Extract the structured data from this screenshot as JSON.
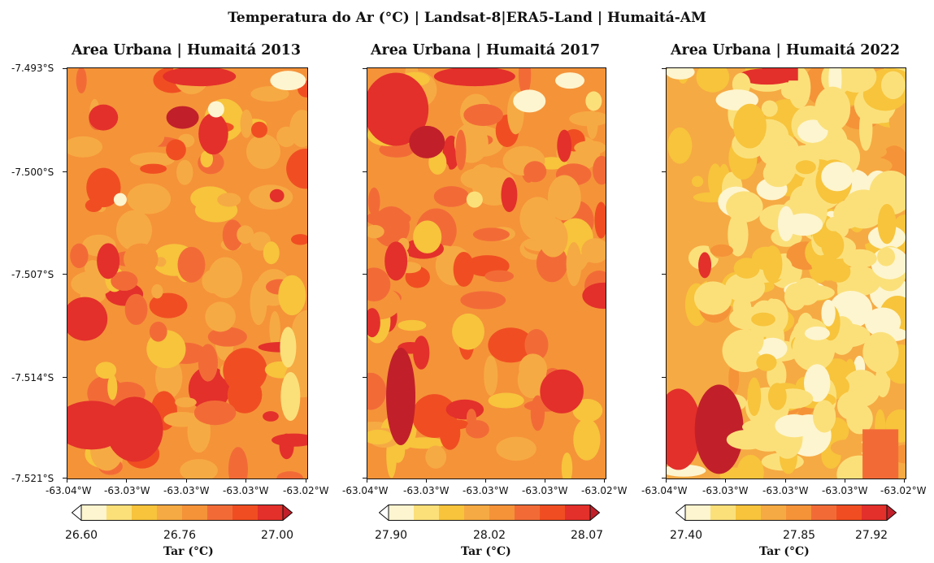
{
  "figure_title": "Temperatura do Ar (°C) | Landsat-8|ERA5-Land | Humaitá-AM",
  "y_tick_labels": [
    "-7.493°S",
    "-7.500°S",
    "-7.507°S",
    "-7.514°S",
    "-7.521°S"
  ],
  "x_tick_labels": [
    "-63.04°W",
    "-63.03°W",
    "-63.03°W",
    "-63.03°W",
    "-63.02°W"
  ],
  "panels": [
    {
      "title": "Area Urbana | Humaitá 2013",
      "colorbar": {
        "ticks": [
          "26.60",
          "26.76",
          "27.00"
        ],
        "label": "Tar (°C)"
      }
    },
    {
      "title": "Area Urbana | Humaitá 2017",
      "colorbar": {
        "ticks": [
          "27.90",
          "28.02",
          "28.07"
        ],
        "label": "Tar (°C)"
      }
    },
    {
      "title": "Area Urbana | Humaitá 2022",
      "colorbar": {
        "ticks": [
          "27.40",
          "27.85",
          "27.92"
        ],
        "label": "Tar (°C)"
      }
    }
  ],
  "colormap": [
    "#fdf5cf",
    "#fbe07a",
    "#f7c43c",
    "#f6aa43",
    "#f59339",
    "#f26b37",
    "#f04e22",
    "#e3302b",
    "#c1202a"
  ],
  "layer_counts": [
    110,
    120,
    130
  ]
}
